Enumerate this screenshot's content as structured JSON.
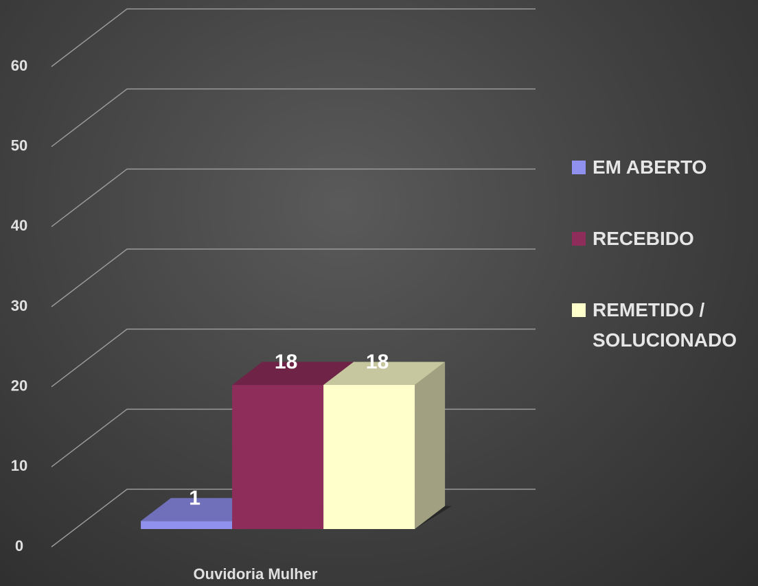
{
  "chart_data": {
    "type": "bar3d",
    "categories": [
      "Ouvidoria Mulher"
    ],
    "series": [
      {
        "name": "EM ABERTO",
        "color": "#9090ee",
        "values": [
          1
        ]
      },
      {
        "name": "RECEBIDO",
        "color": "#8e2d5a",
        "values": [
          18
        ]
      },
      {
        "name": "REMETIDO / SOLUCIONADO",
        "color": "#ffffcc",
        "values": [
          18
        ]
      }
    ],
    "ylim": [
      0,
      60
    ],
    "yticks": [
      0,
      10,
      20,
      30,
      40,
      50,
      60
    ],
    "grid": true,
    "legend": "right"
  }
}
